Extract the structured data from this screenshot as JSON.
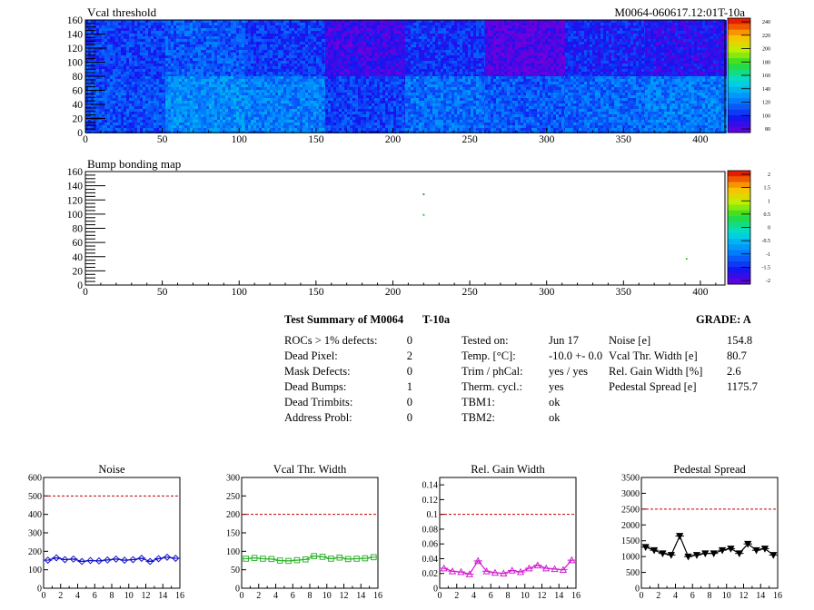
{
  "maps": [
    {
      "id": "vcal",
      "title": "Vcal threshold",
      "header_right": "M0064-060617.12:01T-10a",
      "type": "heatmap",
      "x_range": [
        0,
        416
      ],
      "y_range": [
        0,
        160
      ],
      "x_ticks": [
        0,
        50,
        100,
        150,
        200,
        250,
        300,
        350,
        400
      ],
      "y_ticks": [
        0,
        20,
        40,
        60,
        80,
        100,
        120,
        140,
        160
      ],
      "roc_cols": 52,
      "roc_rows": 80,
      "roc_level_top": [
        0.18,
        0.22,
        0.17,
        0.07,
        0.16,
        0.03,
        0.14,
        0.1
      ],
      "roc_level_bottom": [
        0.2,
        0.3,
        0.28,
        0.18,
        0.25,
        0.22,
        0.24,
        0.27
      ],
      "palette_ticks": [
        "240",
        "220",
        "200",
        "180",
        "160",
        "140",
        "120",
        "100",
        "80"
      ],
      "palette_range": [
        80,
        240
      ]
    },
    {
      "id": "bump",
      "title": "Bump bonding map",
      "type": "heatmap",
      "x_range": [
        0,
        416
      ],
      "y_range": [
        0,
        160
      ],
      "x_ticks": [
        0,
        50,
        100,
        150,
        200,
        250,
        300,
        350,
        400
      ],
      "y_ticks": [
        0,
        20,
        40,
        60,
        80,
        100,
        120,
        140,
        160
      ],
      "hits": [
        [
          220,
          99
        ],
        [
          220,
          128
        ],
        [
          391,
          37
        ]
      ],
      "palette_ticks": [
        "2",
        "1.5",
        "1",
        "0.5",
        "0",
        "-0.5",
        "-1",
        "-1.5",
        "-2"
      ],
      "palette_range": [
        -2,
        2
      ]
    }
  ],
  "summary": {
    "title": "Test Summary of M0064",
    "run": "T-10a",
    "grade": "GRADE:  A",
    "defects": [
      {
        "label": "ROCs > 1% defects:",
        "value": "0"
      },
      {
        "label": "Dead Pixel:",
        "value": "2"
      },
      {
        "label": "Mask Defects:",
        "value": "0"
      },
      {
        "label": "Dead Bumps:",
        "value": "1"
      },
      {
        "label": "Dead Trimbits:",
        "value": "0"
      },
      {
        "label": "Address Probl:",
        "value": "0"
      }
    ],
    "conditions": [
      {
        "label": "Tested on:",
        "value": "Jun 17"
      },
      {
        "label": "Temp. [°C]:",
        "value": "-10.0 +- 0.0"
      },
      {
        "label": "Trim / phCal:",
        "value": "yes / yes"
      },
      {
        "label": "Therm. cycl.:",
        "value": "yes"
      },
      {
        "label": "TBM1:",
        "value": "ok"
      },
      {
        "label": "TBM2:",
        "value": "ok"
      }
    ],
    "widths": [
      {
        "label": "Noise [e]",
        "value": "154.8"
      },
      {
        "label": "Vcal Thr. Width [e]",
        "value": "80.7"
      },
      {
        "label": "Rel. Gain Width [%]",
        "value": "2.6"
      },
      {
        "label": "Pedestal Spread [e]",
        "value": "1175.7"
      }
    ]
  },
  "chart_data": [
    {
      "type": "line",
      "title": "Noise",
      "x": [
        0.5,
        1.5,
        2.5,
        3.5,
        4.5,
        5.5,
        6.5,
        7.5,
        8.5,
        9.5,
        10.5,
        11.5,
        12.5,
        13.5,
        14.5,
        15.5
      ],
      "values": [
        152,
        165,
        155,
        158,
        145,
        150,
        148,
        153,
        158,
        152,
        155,
        162,
        145,
        160,
        168,
        162
      ],
      "xlim": [
        0,
        16
      ],
      "ylim": [
        0,
        600
      ],
      "x_ticks": [
        "0",
        "2",
        "4",
        "6",
        "8",
        "10",
        "12",
        "14",
        "16"
      ],
      "y_ticks": [
        "0",
        "100",
        "200",
        "300",
        "400",
        "500",
        "600"
      ],
      "limit": 500,
      "color": "#1515c8",
      "marker": "diamond"
    },
    {
      "type": "line",
      "title": "Vcal Thr. Width",
      "x": [
        0.5,
        1.5,
        2.5,
        3.5,
        4.5,
        5.5,
        6.5,
        7.5,
        8.5,
        9.5,
        10.5,
        11.5,
        12.5,
        13.5,
        14.5,
        15.5
      ],
      "values": [
        80,
        82,
        80,
        79,
        75,
        74,
        76,
        78,
        87,
        85,
        80,
        83,
        79,
        80,
        81,
        84
      ],
      "xlim": [
        0,
        16
      ],
      "ylim": [
        0,
        300
      ],
      "x_ticks": [
        "0",
        "2",
        "4",
        "6",
        "8",
        "10",
        "12",
        "14",
        "16"
      ],
      "y_ticks": [
        "0",
        "50",
        "100",
        "150",
        "200",
        "250",
        "300"
      ],
      "limit": 200,
      "color": "#2fb52f",
      "marker": "square"
    },
    {
      "type": "line",
      "title": "Rel. Gain Width",
      "x": [
        0.5,
        1.5,
        2.5,
        3.5,
        4.5,
        5.5,
        6.5,
        7.5,
        8.5,
        9.5,
        10.5,
        11.5,
        12.5,
        13.5,
        14.5,
        15.5
      ],
      "values": [
        0.027,
        0.023,
        0.022,
        0.019,
        0.037,
        0.023,
        0.021,
        0.02,
        0.024,
        0.022,
        0.027,
        0.031,
        0.027,
        0.026,
        0.025,
        0.038
      ],
      "xlim": [
        0,
        16
      ],
      "ylim": [
        0,
        0.15
      ],
      "x_ticks": [
        "0",
        "2",
        "4",
        "6",
        "8",
        "10",
        "12",
        "14",
        "16"
      ],
      "y_ticks": [
        "0",
        "0.02",
        "0.04",
        "0.06",
        "0.08",
        "0.1",
        "0.12",
        "0.14"
      ],
      "limit": 0.1,
      "color": "#d21ed2",
      "marker": "triangle"
    },
    {
      "type": "line",
      "title": "Pedestal Spread",
      "x": [
        0.5,
        1.5,
        2.5,
        3.5,
        4.5,
        5.5,
        6.5,
        7.5,
        8.5,
        9.5,
        10.5,
        11.5,
        12.5,
        13.5,
        14.5,
        15.5
      ],
      "values": [
        1300,
        1200,
        1100,
        1050,
        1650,
        1000,
        1050,
        1100,
        1100,
        1200,
        1250,
        1100,
        1400,
        1200,
        1250,
        1050
      ],
      "xlim": [
        0,
        16
      ],
      "ylim": [
        0,
        3500
      ],
      "x_ticks": [
        "0",
        "2",
        "4",
        "6",
        "8",
        "10",
        "12",
        "14",
        "16"
      ],
      "y_ticks": [
        "0",
        "500",
        "1000",
        "1500",
        "2000",
        "2500",
        "3000",
        "3500"
      ],
      "limit": 2500,
      "color": "#000000",
      "marker": "triangle-down"
    }
  ]
}
